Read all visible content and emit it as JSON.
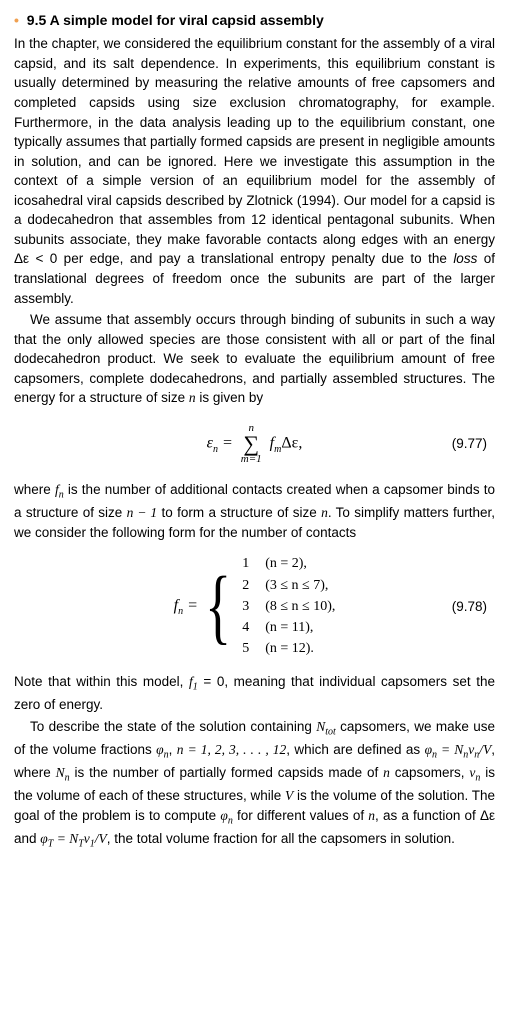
{
  "section": {
    "number": "9.5",
    "title": "A simple model for viral capsid assembly"
  },
  "p1": "In the chapter, we considered the equilibrium constant for the assembly of a viral capsid, and its salt dependence. In experiments, this equilibrium constant is usually determined by measuring the relative amounts of free capsomers and completed capsids using size exclusion chromatography, for example. Furthermore, in the data analysis leading up to the equilibrium constant, one typically assumes that partially formed capsids are present in negligible amounts in solution, and can be ignored. Here we investigate this assumption in the context of a simple version of an equilibrium model for the assembly of icosahedral viral capsids described by Zlotnick (1994). Our model for a capsid is a dodecahedron that assembles from 12 identical pentagonal subunits. When subunits associate, they make favorable contacts along edges with an energy Δε < 0 per edge, and pay a translational entropy penalty due to the ",
  "p1_ital": "loss",
  "p1_tail": " of translational degrees of freedom once the subunits are part of the larger assembly.",
  "p2_a": "We assume that assembly occurs through binding of subunits in such a way that the only allowed species are those consistent with all or part of the final dodecahedron product. We seek to evaluate the equilibrium amount of free capsomers, complete dodecahedrons, and partially assembled structures. The energy for a structure of size ",
  "p2_n": "n",
  "p2_b": " is given by",
  "eq1": {
    "lhs": "ε",
    "lhs_sub": "n",
    "eq": " = ",
    "sum_top": "n",
    "sum_bot": "m=1",
    "rhs_a": "f",
    "rhs_sub": "m",
    "rhs_b": "Δε,",
    "number": "(9.77)"
  },
  "p3_a": "where ",
  "p3_fn": "f",
  "p3_fn_sub": "n",
  "p3_b": " is the number of additional contacts created when a capsomer binds to a structure of size ",
  "p3_n1": "n − 1",
  "p3_c": " to form a structure of size ",
  "p3_n2": "n",
  "p3_d": ". To simplify matters further, we consider the following form for the number of contacts",
  "eq2": {
    "lhs": "f",
    "lhs_sub": "n",
    "eq": " = ",
    "cases": [
      {
        "val": "1",
        "cond": "(n = 2),"
      },
      {
        "val": "2",
        "cond": "(3 ≤ n ≤ 7),"
      },
      {
        "val": "3",
        "cond": "(8 ≤ n ≤ 10),"
      },
      {
        "val": "4",
        "cond": "(n = 11),"
      },
      {
        "val": "5",
        "cond": "(n = 12)."
      }
    ],
    "number": "(9.78)"
  },
  "p4_a": "Note that within this model, ",
  "p4_f1": "f",
  "p4_f1_sub": "1",
  "p4_b": " = 0, meaning that individual capsomers set the zero of energy.",
  "p5_a": "To describe the state of the solution containing ",
  "p5_ntot": "N",
  "p5_ntot_sub": "tot",
  "p5_b": " capsomers, we make use of the volume fractions ",
  "p5_phi": "φ",
  "p5_phi_sub": "n",
  "p5_c": ", ",
  "p5_range": "n = 1, 2, 3, . . . , 12",
  "p5_d": ", which are defined as ",
  "p5_def_l": "φ",
  "p5_def_l_sub": "n",
  "p5_def_eq": " = ",
  "p5_def_r1": "N",
  "p5_def_r1_sub": "n",
  "p5_def_r2": "v",
  "p5_def_r2_sub": "n",
  "p5_def_r3": "/V",
  "p5_e": ", where ",
  "p5_Nn": "N",
  "p5_Nn_sub": "n",
  "p5_f": " is the number of partially formed capsids made of ",
  "p5_n": "n",
  "p5_g": " capsomers, ",
  "p5_vn": "v",
  "p5_vn_sub": "n",
  "p5_h": " is the volume of each of these structures, while ",
  "p5_V": "V",
  "p5_i": " is the volume of the solution. The goal of the problem is to compute ",
  "p5_phin2": "φ",
  "p5_phin2_sub": "n",
  "p5_j": " for different values of ",
  "p5_n2": "n",
  "p5_k": ", as a function of Δε and ",
  "p5_phiT": "φ",
  "p5_phiT_sub": "T",
  "p5_l": " = ",
  "p5_NT": "N",
  "p5_NT_sub": "T",
  "p5_v1": "v",
  "p5_v1_sub": "1",
  "p5_m": "/V",
  "p5_o": ", the total volume fraction for all the capsomers in solution."
}
